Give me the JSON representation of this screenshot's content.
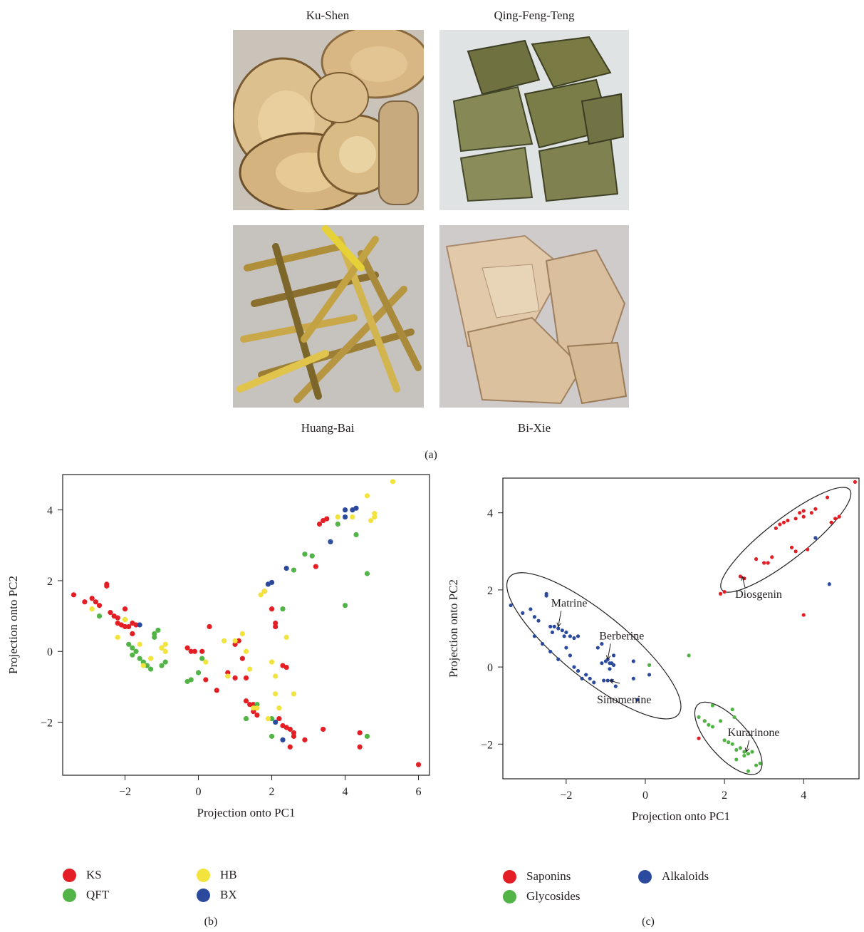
{
  "panel_a": {
    "labels": {
      "kushen": "Ku-Shen",
      "qft": "Qing-Feng-Teng",
      "huangbai": "Huang-Bai",
      "bixie": "Bi-Xie"
    },
    "letter": "(a)"
  },
  "panel_b": {
    "letter": "(b)"
  },
  "panel_c": {
    "letter": "(c)"
  },
  "chart_data": [
    {
      "type": "scatter",
      "xlabel": "Projection onto PC1",
      "ylabel": "Projection onto PC2",
      "xlim": [
        -3.7,
        6.3
      ],
      "ylim": [
        -3.5,
        5.0
      ],
      "xticks": [
        -2,
        0,
        2,
        4,
        6
      ],
      "yticks": [
        -2,
        0,
        2,
        4
      ],
      "legend_position": "bottom",
      "series": [
        {
          "name": "KS",
          "color": "#e31e24",
          "points": [
            [
              -3.4,
              1.6
            ],
            [
              -3.1,
              1.4
            ],
            [
              -2.9,
              1.5
            ],
            [
              -2.8,
              1.4
            ],
            [
              -2.7,
              1.3
            ],
            [
              -2.5,
              1.9
            ],
            [
              -2.5,
              1.85
            ],
            [
              -2.4,
              1.1
            ],
            [
              -2.3,
              1.0
            ],
            [
              -2.2,
              0.95
            ],
            [
              -2.2,
              0.8
            ],
            [
              -2.1,
              0.75
            ],
            [
              -2.0,
              1.2
            ],
            [
              -2.0,
              0.7
            ],
            [
              -1.9,
              0.7
            ],
            [
              -1.8,
              0.8
            ],
            [
              -1.8,
              0.5
            ],
            [
              -1.7,
              0.75
            ],
            [
              -0.3,
              0.1
            ],
            [
              -0.2,
              0.0
            ],
            [
              -0.1,
              0.0
            ],
            [
              0.1,
              0.0
            ],
            [
              0.3,
              0.7
            ],
            [
              0.2,
              -0.8
            ],
            [
              0.5,
              -1.1
            ],
            [
              0.8,
              -0.6
            ],
            [
              1.0,
              0.2
            ],
            [
              1.1,
              0.3
            ],
            [
              1.2,
              -0.2
            ],
            [
              1.0,
              -0.75
            ],
            [
              1.3,
              -0.75
            ],
            [
              1.3,
              -1.4
            ],
            [
              1.4,
              -1.5
            ],
            [
              1.5,
              -1.5
            ],
            [
              1.5,
              -1.7
            ],
            [
              1.6,
              -1.8
            ],
            [
              1.8,
              1.7
            ],
            [
              2.0,
              1.2
            ],
            [
              2.1,
              0.7
            ],
            [
              2.1,
              0.8
            ],
            [
              2.3,
              -0.4
            ],
            [
              2.4,
              -0.45
            ],
            [
              2.2,
              -1.9
            ],
            [
              2.3,
              -2.1
            ],
            [
              2.4,
              -2.15
            ],
            [
              2.5,
              -2.2
            ],
            [
              2.6,
              -2.3
            ],
            [
              2.6,
              -2.4
            ],
            [
              2.5,
              -2.7
            ],
            [
              2.9,
              -2.5
            ],
            [
              3.2,
              2.4
            ],
            [
              3.3,
              3.6
            ],
            [
              3.4,
              3.7
            ],
            [
              3.5,
              3.75
            ],
            [
              3.4,
              -2.2
            ],
            [
              4.4,
              -2.3
            ],
            [
              4.4,
              -2.7
            ],
            [
              6.0,
              -3.2
            ]
          ]
        },
        {
          "name": "QFT",
          "color": "#52b447",
          "points": [
            [
              -2.7,
              1.0
            ],
            [
              -2.0,
              0.9
            ],
            [
              -1.9,
              0.2
            ],
            [
              -1.8,
              0.1
            ],
            [
              -1.8,
              -0.1
            ],
            [
              -1.7,
              0.0
            ],
            [
              -1.6,
              -0.2
            ],
            [
              -1.5,
              -0.3
            ],
            [
              -1.4,
              -0.4
            ],
            [
              -1.3,
              -0.5
            ],
            [
              -1.2,
              0.5
            ],
            [
              -1.2,
              0.4
            ],
            [
              -1.1,
              0.6
            ],
            [
              -1.0,
              0.1
            ],
            [
              -1.0,
              -0.4
            ],
            [
              -0.9,
              -0.3
            ],
            [
              -0.3,
              -0.85
            ],
            [
              -0.2,
              -0.8
            ],
            [
              0.0,
              -0.6
            ],
            [
              0.1,
              -0.2
            ],
            [
              1.3,
              -1.9
            ],
            [
              1.6,
              -1.5
            ],
            [
              2.0,
              -1.9
            ],
            [
              2.0,
              -2.4
            ],
            [
              2.3,
              1.2
            ],
            [
              2.6,
              2.3
            ],
            [
              2.9,
              2.75
            ],
            [
              3.1,
              2.7
            ],
            [
              3.8,
              3.6
            ],
            [
              4.0,
              1.3
            ],
            [
              4.3,
              3.3
            ],
            [
              4.6,
              2.2
            ],
            [
              4.6,
              -2.4
            ]
          ]
        },
        {
          "name": "HB",
          "color": "#f2e33d",
          "points": [
            [
              -2.9,
              1.2
            ],
            [
              -2.2,
              0.4
            ],
            [
              -2.0,
              0.9
            ],
            [
              -1.6,
              0.2
            ],
            [
              -1.5,
              -0.4
            ],
            [
              -1.3,
              -0.2
            ],
            [
              -0.9,
              0.2
            ],
            [
              -0.9,
              0.0
            ],
            [
              -1.0,
              0.1
            ],
            [
              0.2,
              -0.3
            ],
            [
              0.7,
              0.3
            ],
            [
              0.8,
              -0.7
            ],
            [
              1.0,
              0.3
            ],
            [
              1.2,
              0.5
            ],
            [
              1.3,
              0.0
            ],
            [
              1.4,
              -0.5
            ],
            [
              1.5,
              -1.6
            ],
            [
              1.6,
              -1.6
            ],
            [
              1.7,
              1.6
            ],
            [
              1.8,
              1.7
            ],
            [
              1.9,
              -1.9
            ],
            [
              2.0,
              -0.3
            ],
            [
              2.1,
              -0.7
            ],
            [
              2.1,
              -1.2
            ],
            [
              2.2,
              -1.6
            ],
            [
              2.4,
              0.4
            ],
            [
              2.6,
              -1.2
            ],
            [
              3.8,
              3.8
            ],
            [
              4.2,
              3.8
            ],
            [
              4.6,
              4.4
            ],
            [
              4.7,
              3.7
            ],
            [
              4.8,
              3.8
            ],
            [
              4.8,
              3.9
            ],
            [
              5.3,
              4.8
            ]
          ]
        },
        {
          "name": "BX",
          "color": "#2b4a9e",
          "points": [
            [
              -1.6,
              0.75
            ],
            [
              1.9,
              1.9
            ],
            [
              2.0,
              1.95
            ],
            [
              2.4,
              2.35
            ],
            [
              2.1,
              -2.0
            ],
            [
              2.3,
              -2.5
            ],
            [
              3.6,
              3.1
            ],
            [
              4.0,
              4.0
            ],
            [
              4.0,
              3.8
            ],
            [
              4.2,
              4.0
            ],
            [
              4.3,
              4.05
            ]
          ]
        }
      ]
    },
    {
      "type": "scatter",
      "xlabel": "Projection onto PC1",
      "ylabel": "Projection onto PC2",
      "xlim": [
        -3.6,
        5.4
      ],
      "ylim": [
        -2.9,
        4.9
      ],
      "xticks": [
        -2,
        0,
        2,
        4
      ],
      "yticks": [
        -2,
        0,
        2,
        4
      ],
      "legend_position": "bottom",
      "series": [
        {
          "name": "Saponins",
          "color": "#e31e24",
          "points": [
            [
              1.9,
              1.9
            ],
            [
              2.0,
              1.95
            ],
            [
              2.4,
              2.35
            ],
            [
              2.5,
              2.3
            ],
            [
              2.8,
              2.8
            ],
            [
              3.0,
              2.7
            ],
            [
              3.1,
              2.7
            ],
            [
              3.2,
              2.85
            ],
            [
              3.3,
              3.6
            ],
            [
              3.4,
              3.7
            ],
            [
              3.5,
              3.75
            ],
            [
              3.6,
              3.8
            ],
            [
              3.7,
              3.1
            ],
            [
              3.8,
              3.0
            ],
            [
              3.8,
              3.85
            ],
            [
              3.9,
              4.0
            ],
            [
              4.0,
              3.9
            ],
            [
              4.0,
              4.05
            ],
            [
              4.1,
              3.05
            ],
            [
              4.2,
              4.0
            ],
            [
              4.3,
              4.1
            ],
            [
              4.6,
              4.4
            ],
            [
              4.7,
              3.75
            ],
            [
              4.8,
              3.85
            ],
            [
              4.9,
              3.9
            ],
            [
              5.3,
              4.8
            ],
            [
              4.0,
              1.35
            ],
            [
              1.35,
              -1.85
            ],
            [
              1.5,
              -1.4
            ]
          ]
        },
        {
          "name": "Glycosides",
          "color": "#52b447",
          "points": [
            [
              1.1,
              0.3
            ],
            [
              0.1,
              0.05
            ],
            [
              1.35,
              -1.3
            ],
            [
              1.5,
              -1.4
            ],
            [
              1.6,
              -1.5
            ],
            [
              1.7,
              -1.0
            ],
            [
              1.7,
              -1.55
            ],
            [
              1.9,
              -1.4
            ],
            [
              2.0,
              -1.9
            ],
            [
              2.1,
              -1.95
            ],
            [
              2.2,
              -2.0
            ],
            [
              2.2,
              -1.1
            ],
            [
              2.25,
              -1.3
            ],
            [
              2.3,
              -2.15
            ],
            [
              2.4,
              -2.1
            ],
            [
              2.5,
              -2.3
            ],
            [
              2.5,
              -2.2
            ],
            [
              2.6,
              -2.25
            ],
            [
              2.7,
              -2.2
            ],
            [
              2.8,
              -2.55
            ],
            [
              2.6,
              -2.7
            ],
            [
              2.9,
              -2.5
            ],
            [
              2.3,
              -2.4
            ]
          ]
        },
        {
          "name": "Alkaloids",
          "color": "#2b4a9e",
          "points": [
            [
              -3.4,
              1.6
            ],
            [
              -3.1,
              1.4
            ],
            [
              -2.9,
              1.5
            ],
            [
              -2.8,
              1.3
            ],
            [
              -2.7,
              1.2
            ],
            [
              -2.5,
              1.9
            ],
            [
              -2.5,
              1.85
            ],
            [
              -2.4,
              1.05
            ],
            [
              -2.35,
              0.9
            ],
            [
              -2.3,
              1.05
            ],
            [
              -2.2,
              1.0
            ],
            [
              -2.1,
              0.95
            ],
            [
              -2.05,
              0.8
            ],
            [
              -2.0,
              0.9
            ],
            [
              -1.9,
              0.8
            ],
            [
              -1.8,
              0.75
            ],
            [
              -1.7,
              0.8
            ],
            [
              -2.8,
              0.8
            ],
            [
              -2.6,
              0.6
            ],
            [
              -2.4,
              0.4
            ],
            [
              -2.2,
              0.2
            ],
            [
              -2.0,
              0.5
            ],
            [
              -1.9,
              0.3
            ],
            [
              -1.8,
              0.0
            ],
            [
              -1.7,
              -0.1
            ],
            [
              -1.6,
              -0.3
            ],
            [
              -1.5,
              -0.2
            ],
            [
              -1.4,
              -0.3
            ],
            [
              -1.3,
              -0.4
            ],
            [
              -1.2,
              0.5
            ],
            [
              -1.1,
              0.6
            ],
            [
              -1.1,
              0.1
            ],
            [
              -1.0,
              0.15
            ],
            [
              -0.95,
              0.2
            ],
            [
              -0.9,
              0.1
            ],
            [
              -0.9,
              -0.05
            ],
            [
              -0.8,
              0.05
            ],
            [
              -0.85,
              0.1
            ],
            [
              -0.8,
              0.3
            ],
            [
              -1.05,
              -0.35
            ],
            [
              -0.95,
              -0.35
            ],
            [
              -0.85,
              -0.35
            ],
            [
              -0.75,
              -0.5
            ],
            [
              -0.3,
              0.15
            ],
            [
              -0.3,
              -0.3
            ],
            [
              -0.2,
              -0.85
            ],
            [
              0.1,
              -0.2
            ],
            [
              4.3,
              3.35
            ],
            [
              4.65,
              2.15
            ]
          ]
        }
      ],
      "annotations": [
        {
          "text": "Matrine",
          "x": -2.2,
          "y": 1.05
        },
        {
          "text": "Berberine",
          "x": -0.95,
          "y": 0.2
        },
        {
          "text": "Sinomenine",
          "x": -0.9,
          "y": -0.35
        },
        {
          "text": "Diosgenin",
          "x": 2.45,
          "y": 2.35
        },
        {
          "text": "Kurarinone",
          "x": 2.55,
          "y": -2.2
        }
      ]
    }
  ]
}
